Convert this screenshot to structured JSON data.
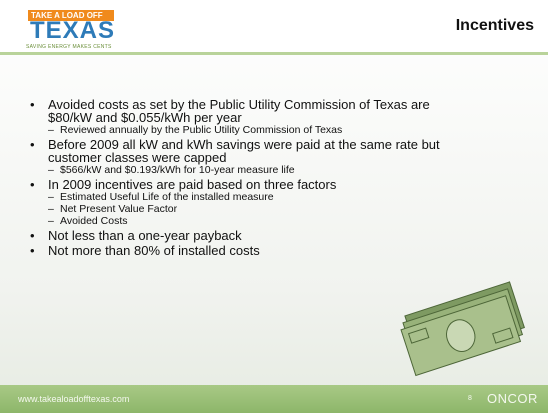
{
  "header": {
    "logo": {
      "line1": "TAKE A LOAD OFF",
      "line2": "TEXAS",
      "tagline": "SAVING ENERGY MAKES CENTS"
    },
    "title": "Incentives"
  },
  "bullets": [
    {
      "text": "Avoided costs as set by the Public Utility Commission of Texas are $80/kW and $0.055/kWh per year",
      "sub": [
        "Reviewed annually by the Public Utility Commission of Texas"
      ]
    },
    {
      "text": "Before 2009 all kW and kWh savings were paid at the same rate but customer classes were capped",
      "sub": [
        "$566/kW and $0.193/kWh for 10-year measure life"
      ]
    },
    {
      "text": "In 2009 incentives are paid based on three factors",
      "sub": [
        "Estimated Useful Life of the installed measure",
        "Net Present Value Factor",
        "Avoided Costs"
      ]
    },
    {
      "text": "Not less than a one-year payback",
      "sub": []
    },
    {
      "text": "Not more than 80% of installed costs",
      "sub": []
    }
  ],
  "footer": {
    "url": "www.takealoadofftexas.com",
    "page": 8,
    "brand": "ONCOR"
  }
}
